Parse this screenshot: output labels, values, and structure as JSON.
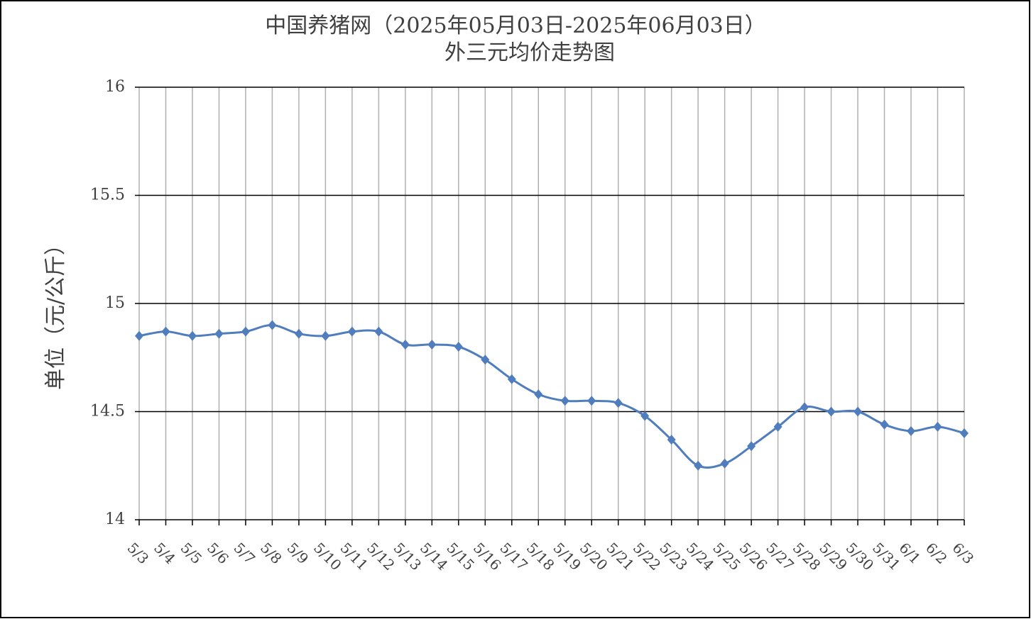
{
  "chart_data": {
    "type": "line",
    "title": "中国养猪网（2025年05月03日-2025年06月03日）",
    "subtitle": "外三元均价走势图",
    "y_label": "单位（元/公斤）",
    "categories": [
      "5/3",
      "5/4",
      "5/5",
      "5/6",
      "5/7",
      "5/8",
      "5/9",
      "5/10",
      "5/11",
      "5/12",
      "5/13",
      "5/14",
      "5/15",
      "5/16",
      "5/17",
      "5/18",
      "5/19",
      "5/20",
      "5/21",
      "5/22",
      "5/23",
      "5/24",
      "5/25",
      "5/26",
      "5/27",
      "5/28",
      "5/29",
      "5/30",
      "5/31",
      "6/1",
      "6/2",
      "6/3"
    ],
    "values": [
      14.85,
      14.87,
      14.85,
      14.86,
      14.87,
      14.9,
      14.86,
      14.85,
      14.87,
      14.87,
      14.81,
      14.81,
      14.8,
      14.74,
      14.65,
      14.58,
      14.55,
      14.55,
      14.54,
      14.48,
      14.37,
      14.25,
      14.26,
      14.34,
      14.43,
      14.52,
      14.5,
      14.5,
      14.44,
      14.41,
      14.43,
      14.4
    ],
    "color": "#4f7dbd",
    "ylim": [
      14,
      16
    ],
    "yticks": [
      14,
      14.5,
      15,
      15.5,
      16
    ],
    "grid": true
  }
}
